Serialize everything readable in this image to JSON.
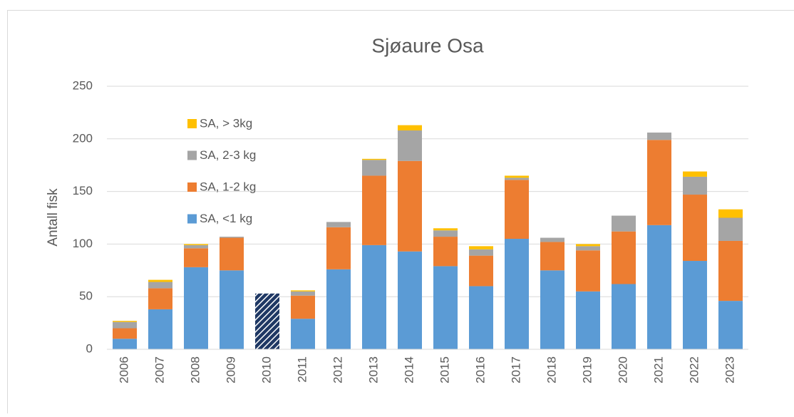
{
  "chart_data": {
    "type": "stacked_bar",
    "title": "Sjøaure Osa",
    "y_label": "Antall fisk",
    "categories": [
      "2006",
      "2007",
      "2008",
      "2009",
      "2010",
      "2011",
      "2012",
      "2013",
      "2014",
      "2015",
      "2016",
      "2017",
      "2018",
      "2019",
      "2020",
      "2021",
      "2022",
      "2023"
    ],
    "hatched_category": "2010",
    "series": [
      {
        "name": "SA, <1 kg",
        "color": "#5b9bd5",
        "values": [
          10,
          38,
          78,
          75,
          53,
          29,
          76,
          99,
          93,
          79,
          60,
          105,
          75,
          55,
          62,
          118,
          84,
          46
        ]
      },
      {
        "name": "SA, 1-2 kg",
        "color": "#ed7d31",
        "values": [
          10,
          20,
          18,
          31,
          null,
          22,
          40,
          66,
          86,
          28,
          29,
          56,
          27,
          39,
          50,
          81,
          63,
          57
        ]
      },
      {
        "name": "SA, 2-3 kg",
        "color": "#a5a5a5",
        "values": [
          6,
          6,
          3,
          1,
          null,
          4,
          5,
          15,
          29,
          6,
          6,
          2,
          4,
          4,
          15,
          7,
          17,
          22
        ]
      },
      {
        "name": "SA, > 3kg",
        "color": "#ffc000",
        "values": [
          1,
          2,
          1,
          0,
          null,
          1,
          0,
          1,
          5,
          2,
          3,
          2,
          0,
          2,
          0,
          0,
          5,
          8
        ]
      }
    ],
    "ylim": [
      0,
      250
    ],
    "yticks": [
      0,
      50,
      100,
      150,
      200,
      250
    ],
    "grid": true,
    "legend": "upper-left"
  }
}
